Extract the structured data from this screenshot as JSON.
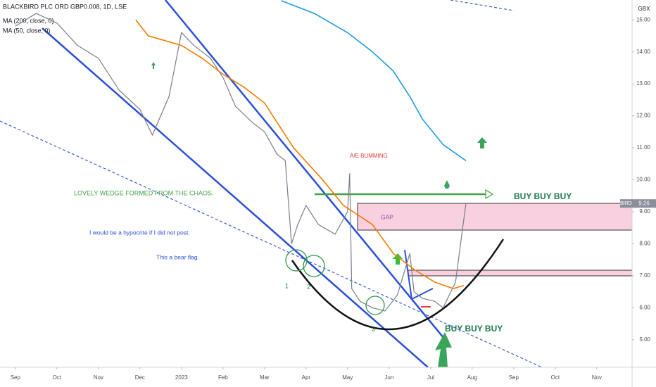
{
  "chart_data": {
    "type": "line",
    "title": "BLACKBIRD PLC ORD GBP0.008, 1D, LSE",
    "symbol": "BIRD",
    "y_axis_unit": "GBX",
    "xlim": [
      -0.37,
      14.85
    ],
    "xticks": [
      {
        "value": 0,
        "label": "Sep"
      },
      {
        "value": 1,
        "label": "Oct"
      },
      {
        "value": 2,
        "label": "Nov"
      },
      {
        "value": 3,
        "label": "Dec"
      },
      {
        "value": 4,
        "label": "2023"
      },
      {
        "value": 5,
        "label": "Feb"
      },
      {
        "value": 6,
        "label": "Mar"
      },
      {
        "value": 7,
        "label": "Apr"
      },
      {
        "value": 8,
        "label": "May"
      },
      {
        "value": 9,
        "label": "Jun"
      },
      {
        "value": 10,
        "label": "Jul"
      },
      {
        "value": 11,
        "label": "Aug"
      },
      {
        "value": 12,
        "label": "Sep"
      },
      {
        "value": 13,
        "label": "Oct"
      },
      {
        "value": 14,
        "label": "Nov"
      }
    ],
    "ylim": [
      4.14,
      15.62
    ],
    "yticks": [
      {
        "value": 5,
        "label": "5.00"
      },
      {
        "value": 6,
        "label": "6.00"
      },
      {
        "value": 7,
        "label": "7.00"
      },
      {
        "value": 8,
        "label": "8.00"
      },
      {
        "value": 9,
        "label": "9.00"
      },
      {
        "value": 10,
        "label": "10.00"
      },
      {
        "value": 11,
        "label": "11.00"
      },
      {
        "value": 12,
        "label": "12.00"
      },
      {
        "value": 13,
        "label": "13.00"
      },
      {
        "value": 14,
        "label": "14.00"
      },
      {
        "value": 15,
        "label": "15.00"
      }
    ],
    "grid": false,
    "series": [
      {
        "name": "BIRD",
        "color": "#7a7f8a",
        "x": [
          0.0,
          0.5,
          1.0,
          1.5,
          2.0,
          2.5,
          3.0,
          3.3,
          3.7,
          4.0,
          4.3,
          4.7,
          5.0,
          5.3,
          5.7,
          6.0,
          6.3,
          6.5,
          6.65,
          6.8,
          7.0,
          7.3,
          7.7,
          8.0,
          8.05,
          8.1,
          8.3,
          8.6,
          8.9,
          9.2,
          9.5,
          9.6,
          9.8,
          10.1,
          10.3,
          10.6,
          10.75,
          10.85
        ],
        "values": [
          14.8,
          15.2,
          14.9,
          14.2,
          13.8,
          12.8,
          12.2,
          11.4,
          12.6,
          14.6,
          14.2,
          13.8,
          13.2,
          12.3,
          11.8,
          11.5,
          10.8,
          10.6,
          8.0,
          8.6,
          9.2,
          8.6,
          8.3,
          9.0,
          10.2,
          6.6,
          6.2,
          6.0,
          5.9,
          6.4,
          7.7,
          6.5,
          6.3,
          6.2,
          6.0,
          6.8,
          8.3,
          9.26
        ]
      },
      {
        "name": "MA (200, close, 0)",
        "color": "#1e9be0",
        "x": [
          6.4,
          7.2,
          8.0,
          8.6,
          9.1,
          9.5,
          9.8,
          10.3,
          10.85
        ],
        "values": [
          15.6,
          15.2,
          14.6,
          14.0,
          13.4,
          12.6,
          11.9,
          11.1,
          10.6
        ]
      },
      {
        "name": "MA (50, close, 0)",
        "color": "#f57c00",
        "x": [
          2.9,
          3.2,
          3.6,
          4.0,
          4.5,
          5.0,
          5.5,
          6.0,
          6.7,
          7.4,
          7.9,
          8.6,
          9.1,
          9.6,
          10.1,
          10.55,
          10.8
        ],
        "values": [
          15.0,
          14.5,
          14.35,
          14.2,
          13.8,
          13.3,
          12.9,
          12.4,
          11.0,
          10.0,
          9.2,
          8.6,
          7.7,
          7.2,
          6.8,
          6.6,
          6.7
        ]
      }
    ],
    "annotations": [
      "A/E BUMMING",
      "LOVELY WEDGE FORMED FROM THE CHAOS.",
      "I would be a hypocrite if I did not  post.",
      "This a bear flag.",
      "GAP",
      "BUY BUY BUY",
      "BUY BUY BUY",
      "1",
      "2",
      "3"
    ]
  }
}
